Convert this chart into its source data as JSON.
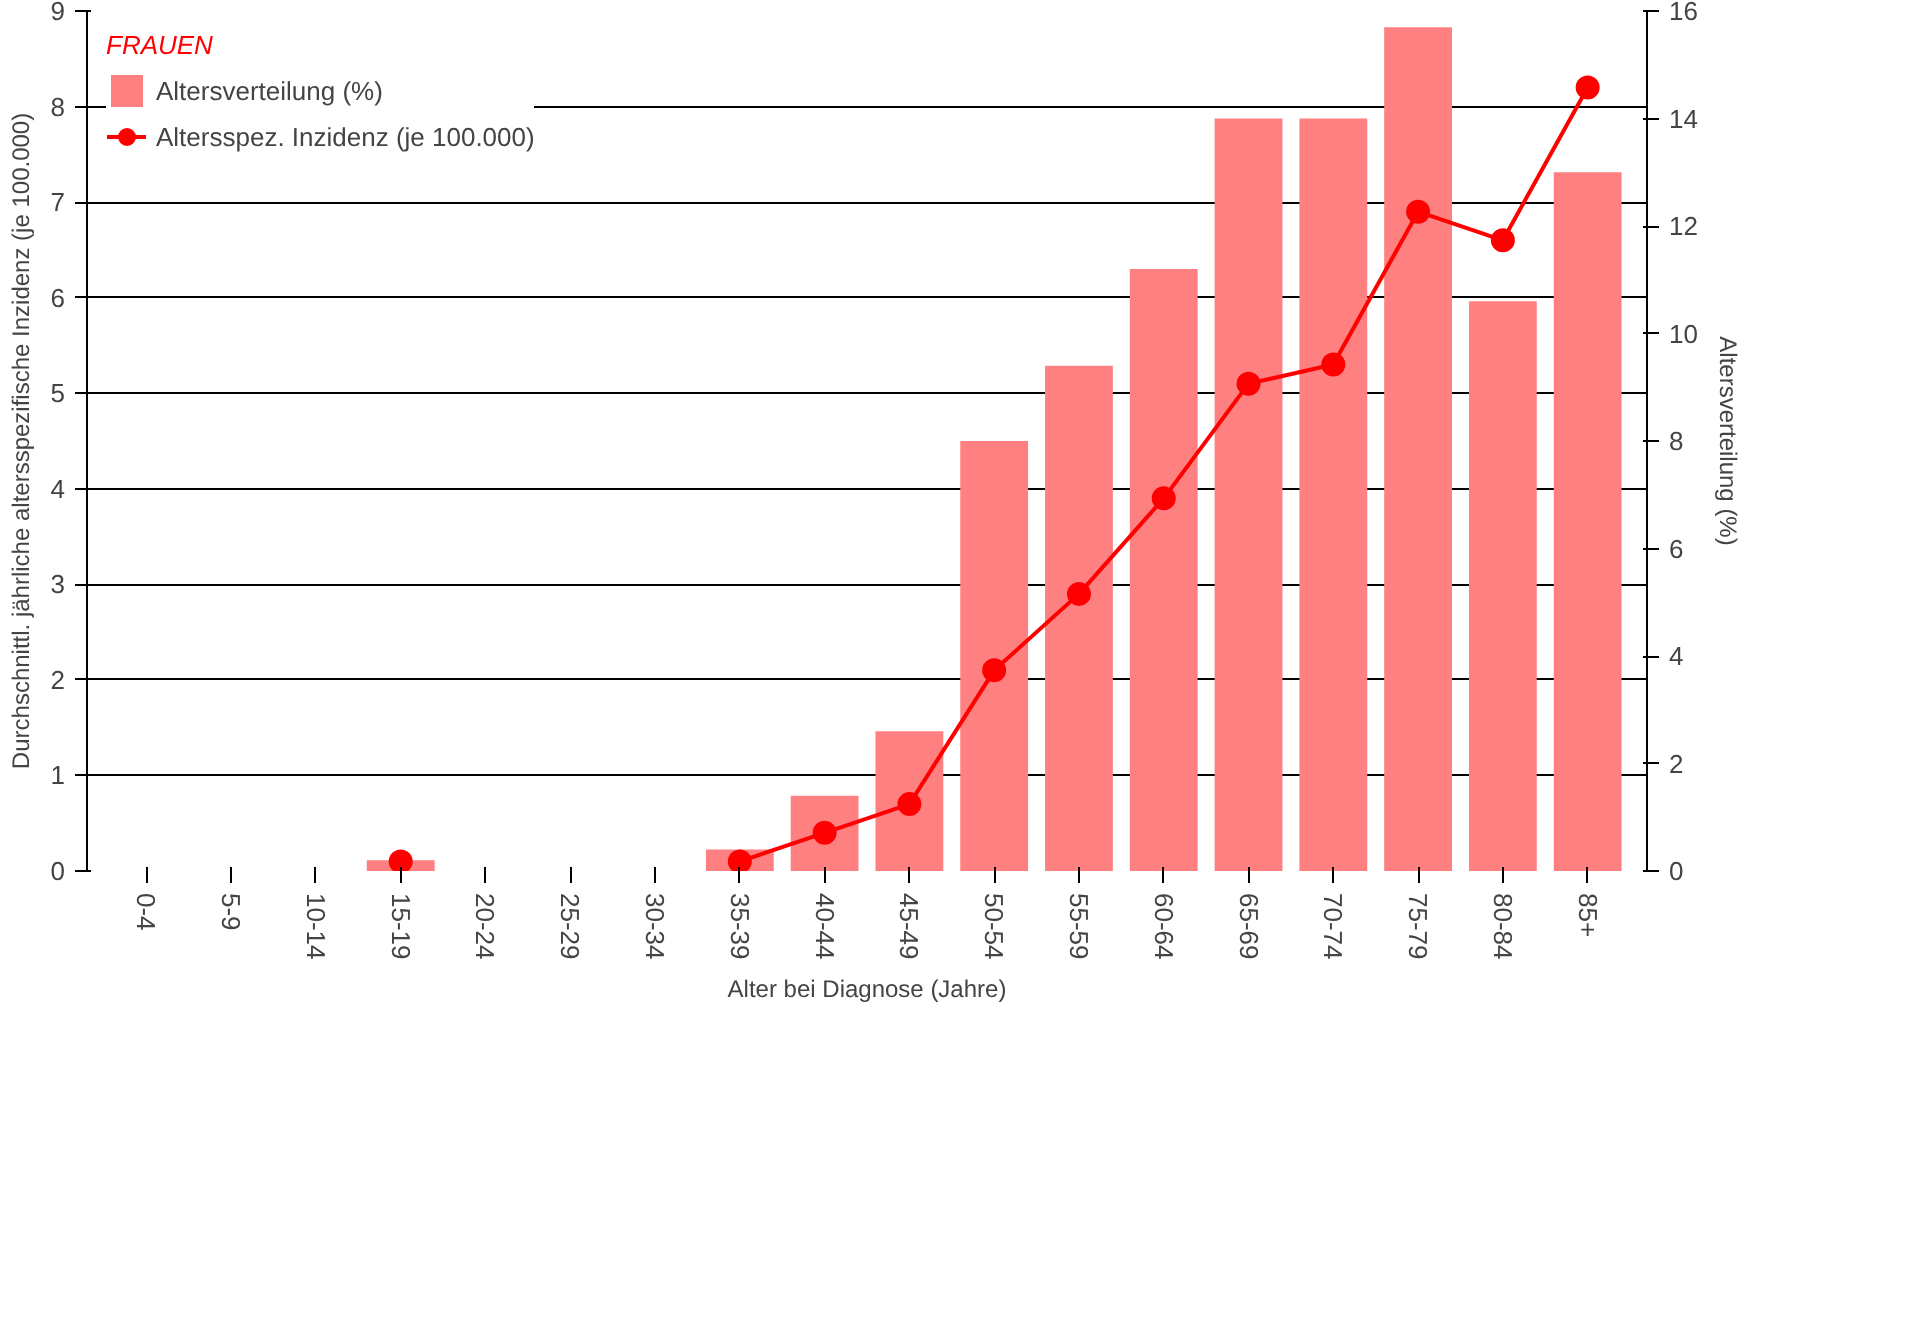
{
  "chart_data": {
    "type": "bar",
    "xlabel": "Alter bei Diagnose (Jahre)",
    "ylabel": "Durchschnittl. jährliche altersspezifische Inzidenz (je 100.000)",
    "y2label": "Altersverteilung (%)",
    "legend_title": "FRAUEN",
    "categories": [
      "0-4",
      "5-9",
      "10-14",
      "15-19",
      "20-24",
      "25-29",
      "30-34",
      "35-39",
      "40-44",
      "45-49",
      "50-54",
      "55-59",
      "60-64",
      "65-69",
      "70-74",
      "75-79",
      "80-84",
      "85+"
    ],
    "series": [
      {
        "name": "Altersverteilung (%)",
        "axis": "y2",
        "color": "#ff8080",
        "values": [
          0,
          0,
          0,
          0.2,
          0,
          0,
          0,
          0.4,
          1.4,
          2.6,
          8.0,
          9.4,
          11.2,
          14.0,
          14.0,
          15.7,
          10.6,
          13.0
        ]
      },
      {
        "name": "Altersspez. Inzidenz (je 100.000)",
        "type": "line",
        "color": "#ff0000",
        "marker": "circle",
        "values": [
          null,
          null,
          null,
          0.1,
          null,
          null,
          null,
          0.1,
          0.4,
          0.7,
          2.1,
          2.9,
          3.9,
          5.1,
          5.3,
          6.9,
          6.6,
          8.2
        ]
      }
    ],
    "ylim": [
      0,
      9
    ],
    "yticks": [
      0,
      1,
      2,
      3,
      4,
      5,
      6,
      7,
      8,
      9
    ],
    "y2lim": [
      0,
      16
    ],
    "y2ticks": [
      0,
      2,
      4,
      6,
      8,
      10,
      12,
      14,
      16
    ],
    "grid": "y",
    "legend": "top left"
  }
}
